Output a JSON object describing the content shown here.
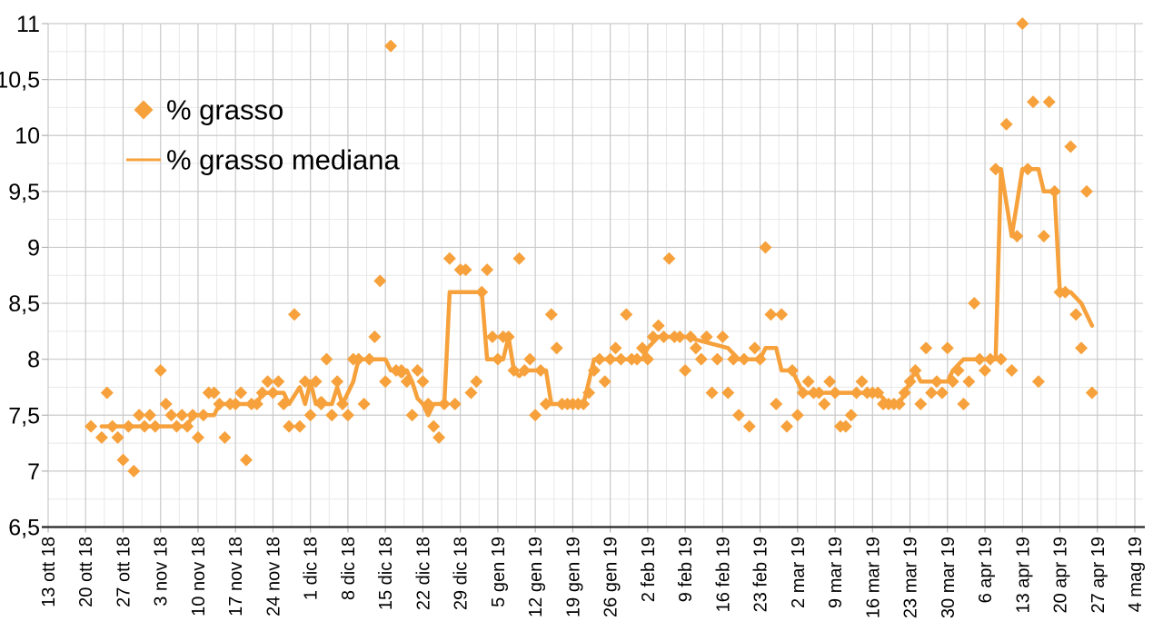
{
  "chart_data": {
    "type": "scatter",
    "title": "",
    "legend": {
      "position": "top-left",
      "entries": [
        {
          "label": "% grasso",
          "marker": "diamond"
        },
        {
          "label": "% grasso mediana",
          "marker": "line"
        }
      ]
    },
    "colors": {
      "series_orange": "#F6A13B",
      "grid_major": "#c9c9c9",
      "grid_minor": "#e8e8e8",
      "axis_line": "#262626",
      "tick": "#b3b3b3",
      "label_text": "#000000"
    },
    "x_axis": {
      "start_date": "2018-10-13",
      "end_date": "2019-05-04",
      "tick_interval_days": 7,
      "minor_interval_days": 3.5,
      "tick_labels": [
        "13 ott 18",
        "20 ott 18",
        "27 ott 18",
        "3 nov 18",
        "10 nov 18",
        "17 nov 18",
        "24 nov 18",
        "1 dic 18",
        "8 dic 18",
        "15 dic 18",
        "22 dic 18",
        "29 dic 18",
        "5 gen 19",
        "12 gen 19",
        "19 gen 19",
        "26 gen 19",
        "2 feb 19",
        "9 feb 19",
        "16 feb 19",
        "23 feb 19",
        "2 mar 19",
        "9 mar 19",
        "16 mar 19",
        "23 mar 19",
        "30 mar 19",
        "6 apr 19",
        "13 apr 19",
        "20 apr 19",
        "27 apr 19",
        "4 mag 19"
      ]
    },
    "y_axis": {
      "min": 6.5,
      "max": 11,
      "tick_step": 0.5,
      "minor_step": 0.25,
      "tick_labels": [
        "6,5",
        "7",
        "7,5",
        "8",
        "8,5",
        "9",
        "9,5",
        "10",
        "10,5",
        "11"
      ]
    },
    "series": [
      {
        "name": "% grasso",
        "type": "scatter",
        "points": [
          [
            "2018-10-21",
            7.4
          ],
          [
            "2018-10-23",
            7.3
          ],
          [
            "2018-10-24",
            7.7
          ],
          [
            "2018-10-25",
            7.4
          ],
          [
            "2018-10-26",
            7.3
          ],
          [
            "2018-10-27",
            7.1
          ],
          [
            "2018-10-28",
            7.4
          ],
          [
            "2018-10-29",
            7.0
          ],
          [
            "2018-10-30",
            7.5
          ],
          [
            "2018-10-31",
            7.4
          ],
          [
            "2018-11-01",
            7.5
          ],
          [
            "2018-11-02",
            7.4
          ],
          [
            "2018-11-03",
            7.9
          ],
          [
            "2018-11-04",
            7.6
          ],
          [
            "2018-11-05",
            7.5
          ],
          [
            "2018-11-06",
            7.4
          ],
          [
            "2018-11-07",
            7.5
          ],
          [
            "2018-11-08",
            7.4
          ],
          [
            "2018-11-09",
            7.5
          ],
          [
            "2018-11-10",
            7.3
          ],
          [
            "2018-11-11",
            7.5
          ],
          [
            "2018-11-12",
            7.7
          ],
          [
            "2018-11-13",
            7.7
          ],
          [
            "2018-11-14",
            7.6
          ],
          [
            "2018-11-15",
            7.3
          ],
          [
            "2018-11-16",
            7.6
          ],
          [
            "2018-11-17",
            7.6
          ],
          [
            "2018-11-18",
            7.7
          ],
          [
            "2018-11-19",
            7.1
          ],
          [
            "2018-11-20",
            7.6
          ],
          [
            "2018-11-21",
            7.6
          ],
          [
            "2018-11-22",
            7.7
          ],
          [
            "2018-11-23",
            7.8
          ],
          [
            "2018-11-24",
            7.7
          ],
          [
            "2018-11-25",
            7.8
          ],
          [
            "2018-11-26",
            7.6
          ],
          [
            "2018-11-27",
            7.4
          ],
          [
            "2018-11-28",
            8.4
          ],
          [
            "2018-11-29",
            7.4
          ],
          [
            "2018-11-30",
            7.8
          ],
          [
            "2018-12-01",
            7.5
          ],
          [
            "2018-12-02",
            7.8
          ],
          [
            "2018-12-03",
            7.6
          ],
          [
            "2018-12-04",
            8.0
          ],
          [
            "2018-12-05",
            7.5
          ],
          [
            "2018-12-06",
            7.8
          ],
          [
            "2018-12-07",
            7.6
          ],
          [
            "2018-12-08",
            7.5
          ],
          [
            "2018-12-09",
            8.0
          ],
          [
            "2018-12-10",
            8.0
          ],
          [
            "2018-12-11",
            7.6
          ],
          [
            "2018-12-12",
            8.0
          ],
          [
            "2018-12-13",
            8.2
          ],
          [
            "2018-12-14",
            8.7
          ],
          [
            "2018-12-15",
            7.8
          ],
          [
            "2018-12-16",
            10.8
          ],
          [
            "2018-12-17",
            7.9
          ],
          [
            "2018-12-18",
            7.9
          ],
          [
            "2018-12-19",
            7.8
          ],
          [
            "2018-12-20",
            7.5
          ],
          [
            "2018-12-21",
            7.9
          ],
          [
            "2018-12-22",
            7.8
          ],
          [
            "2018-12-23",
            7.6
          ],
          [
            "2018-12-24",
            7.4
          ],
          [
            "2018-12-25",
            7.3
          ],
          [
            "2018-12-26",
            7.6
          ],
          [
            "2018-12-27",
            8.9
          ],
          [
            "2018-12-28",
            7.6
          ],
          [
            "2018-12-29",
            8.8
          ],
          [
            "2018-12-30",
            8.8
          ],
          [
            "2018-12-31",
            7.7
          ],
          [
            "2019-01-01",
            7.8
          ],
          [
            "2019-01-02",
            8.6
          ],
          [
            "2019-01-03",
            8.8
          ],
          [
            "2019-01-04",
            8.2
          ],
          [
            "2019-01-05",
            8.0
          ],
          [
            "2019-01-06",
            8.2
          ],
          [
            "2019-01-07",
            8.2
          ],
          [
            "2019-01-08",
            7.9
          ],
          [
            "2019-01-09",
            8.9
          ],
          [
            "2019-01-10",
            7.9
          ],
          [
            "2019-01-11",
            8.0
          ],
          [
            "2019-01-12",
            7.5
          ],
          [
            "2019-01-13",
            7.9
          ],
          [
            "2019-01-14",
            7.6
          ],
          [
            "2019-01-15",
            8.4
          ],
          [
            "2019-01-16",
            8.1
          ],
          [
            "2019-01-17",
            7.6
          ],
          [
            "2019-01-18",
            7.6
          ],
          [
            "2019-01-19",
            7.6
          ],
          [
            "2019-01-20",
            7.6
          ],
          [
            "2019-01-21",
            7.6
          ],
          [
            "2019-01-22",
            7.7
          ],
          [
            "2019-01-23",
            7.9
          ],
          [
            "2019-01-24",
            8.0
          ],
          [
            "2019-01-25",
            7.8
          ],
          [
            "2019-01-26",
            8.0
          ],
          [
            "2019-01-27",
            8.1
          ],
          [
            "2019-01-28",
            8.0
          ],
          [
            "2019-01-29",
            8.4
          ],
          [
            "2019-01-30",
            8.0
          ],
          [
            "2019-01-31",
            8.0
          ],
          [
            "2019-02-01",
            8.1
          ],
          [
            "2019-02-02",
            8.0
          ],
          [
            "2019-02-03",
            8.2
          ],
          [
            "2019-02-04",
            8.3
          ],
          [
            "2019-02-05",
            8.2
          ],
          [
            "2019-02-06",
            8.9
          ],
          [
            "2019-02-07",
            8.2
          ],
          [
            "2019-02-08",
            8.2
          ],
          [
            "2019-02-09",
            7.9
          ],
          [
            "2019-02-10",
            8.2
          ],
          [
            "2019-02-11",
            8.1
          ],
          [
            "2019-02-12",
            8.0
          ],
          [
            "2019-02-13",
            8.2
          ],
          [
            "2019-02-14",
            7.7
          ],
          [
            "2019-02-15",
            8.0
          ],
          [
            "2019-02-16",
            8.2
          ],
          [
            "2019-02-17",
            7.7
          ],
          [
            "2019-02-18",
            8.0
          ],
          [
            "2019-02-19",
            7.5
          ],
          [
            "2019-02-20",
            8.0
          ],
          [
            "2019-02-21",
            7.4
          ],
          [
            "2019-02-22",
            8.1
          ],
          [
            "2019-02-23",
            8.0
          ],
          [
            "2019-02-24",
            9.0
          ],
          [
            "2019-02-25",
            8.4
          ],
          [
            "2019-02-26",
            7.6
          ],
          [
            "2019-02-27",
            8.4
          ],
          [
            "2019-02-28",
            7.4
          ],
          [
            "2019-03-01",
            7.9
          ],
          [
            "2019-03-02",
            7.5
          ],
          [
            "2019-03-03",
            7.7
          ],
          [
            "2019-03-04",
            7.8
          ],
          [
            "2019-03-05",
            7.7
          ],
          [
            "2019-03-06",
            7.7
          ],
          [
            "2019-03-07",
            7.6
          ],
          [
            "2019-03-08",
            7.8
          ],
          [
            "2019-03-09",
            7.7
          ],
          [
            "2019-03-10",
            7.4
          ],
          [
            "2019-03-11",
            7.4
          ],
          [
            "2019-03-12",
            7.5
          ],
          [
            "2019-03-13",
            7.7
          ],
          [
            "2019-03-14",
            7.8
          ],
          [
            "2019-03-15",
            7.7
          ],
          [
            "2019-03-16",
            7.7
          ],
          [
            "2019-03-17",
            7.7
          ],
          [
            "2019-03-18",
            7.6
          ],
          [
            "2019-03-19",
            7.6
          ],
          [
            "2019-03-20",
            7.6
          ],
          [
            "2019-03-21",
            7.6
          ],
          [
            "2019-03-22",
            7.7
          ],
          [
            "2019-03-23",
            7.8
          ],
          [
            "2019-03-24",
            7.9
          ],
          [
            "2019-03-25",
            7.6
          ],
          [
            "2019-03-26",
            8.1
          ],
          [
            "2019-03-27",
            7.7
          ],
          [
            "2019-03-28",
            7.8
          ],
          [
            "2019-03-29",
            7.7
          ],
          [
            "2019-03-30",
            8.1
          ],
          [
            "2019-03-31",
            7.8
          ],
          [
            "2019-04-01",
            7.9
          ],
          [
            "2019-04-02",
            7.6
          ],
          [
            "2019-04-03",
            7.8
          ],
          [
            "2019-04-04",
            8.5
          ],
          [
            "2019-04-05",
            8.0
          ],
          [
            "2019-04-06",
            7.9
          ],
          [
            "2019-04-07",
            8.0
          ],
          [
            "2019-04-08",
            9.7
          ],
          [
            "2019-04-09",
            8.0
          ],
          [
            "2019-04-10",
            10.1
          ],
          [
            "2019-04-11",
            7.9
          ],
          [
            "2019-04-12",
            9.1
          ],
          [
            "2019-04-13",
            11.0
          ],
          [
            "2019-04-14",
            9.7
          ],
          [
            "2019-04-15",
            10.3
          ],
          [
            "2019-04-16",
            7.8
          ],
          [
            "2019-04-17",
            9.1
          ],
          [
            "2019-04-18",
            10.3
          ],
          [
            "2019-04-19",
            9.5
          ],
          [
            "2019-04-20",
            8.6
          ],
          [
            "2019-04-21",
            8.6
          ],
          [
            "2019-04-22",
            9.9
          ],
          [
            "2019-04-23",
            8.4
          ],
          [
            "2019-04-24",
            8.1
          ],
          [
            "2019-04-25",
            9.5
          ],
          [
            "2019-04-26",
            7.7
          ]
        ]
      },
      {
        "name": "% grasso mediana",
        "type": "line",
        "points": [
          [
            "2018-10-23",
            7.4
          ],
          [
            "2018-11-08",
            7.4
          ],
          [
            "2018-11-09",
            7.5
          ],
          [
            "2018-11-13",
            7.5
          ],
          [
            "2018-11-14",
            7.6
          ],
          [
            "2018-11-21",
            7.6
          ],
          [
            "2018-11-22",
            7.7
          ],
          [
            "2018-11-26",
            7.7
          ],
          [
            "2018-11-27",
            7.6
          ],
          [
            "2018-11-29",
            7.75
          ],
          [
            "2018-11-30",
            7.6
          ],
          [
            "2018-12-01",
            7.8
          ],
          [
            "2018-12-02",
            7.6
          ],
          [
            "2018-12-03",
            7.65
          ],
          [
            "2018-12-04",
            7.6
          ],
          [
            "2018-12-05",
            7.6
          ],
          [
            "2018-12-06",
            7.75
          ],
          [
            "2018-12-07",
            7.6
          ],
          [
            "2018-12-08",
            7.7
          ],
          [
            "2018-12-09",
            7.8
          ],
          [
            "2018-12-10",
            8.0
          ],
          [
            "2018-12-15",
            8.0
          ],
          [
            "2018-12-16",
            7.9
          ],
          [
            "2018-12-17",
            7.9
          ],
          [
            "2018-12-18",
            7.85
          ],
          [
            "2018-12-19",
            7.9
          ],
          [
            "2018-12-20",
            7.8
          ],
          [
            "2018-12-21",
            7.65
          ],
          [
            "2018-12-22",
            7.6
          ],
          [
            "2018-12-23",
            7.5
          ],
          [
            "2018-12-24",
            7.6
          ],
          [
            "2018-12-26",
            7.6
          ],
          [
            "2018-12-27",
            8.6
          ],
          [
            "2019-01-02",
            8.6
          ],
          [
            "2019-01-03",
            8.0
          ],
          [
            "2019-01-06",
            8.0
          ],
          [
            "2019-01-07",
            8.2
          ],
          [
            "2019-01-08",
            7.9
          ],
          [
            "2019-01-09",
            7.85
          ],
          [
            "2019-01-10",
            7.9
          ],
          [
            "2019-01-14",
            7.9
          ],
          [
            "2019-01-15",
            7.6
          ],
          [
            "2019-01-21",
            7.6
          ],
          [
            "2019-01-22",
            7.8
          ],
          [
            "2019-01-23",
            8.0
          ],
          [
            "2019-02-01",
            8.0
          ],
          [
            "2019-02-02",
            8.1
          ],
          [
            "2019-02-04",
            8.2
          ],
          [
            "2019-02-09",
            8.2
          ],
          [
            "2019-02-17",
            8.1
          ],
          [
            "2019-02-19",
            8.0
          ],
          [
            "2019-02-23",
            8.0
          ],
          [
            "2019-02-24",
            8.1
          ],
          [
            "2019-02-26",
            8.1
          ],
          [
            "2019-02-27",
            7.9
          ],
          [
            "2019-03-01",
            7.9
          ],
          [
            "2019-03-03",
            7.7
          ],
          [
            "2019-03-17",
            7.7
          ],
          [
            "2019-03-19",
            7.6
          ],
          [
            "2019-03-21",
            7.6
          ],
          [
            "2019-03-22",
            7.7
          ],
          [
            "2019-03-23",
            7.8
          ],
          [
            "2019-03-24",
            7.9
          ],
          [
            "2019-03-25",
            7.8
          ],
          [
            "2019-03-30",
            7.8
          ],
          [
            "2019-03-31",
            7.9
          ],
          [
            "2019-04-02",
            8.0
          ],
          [
            "2019-04-08",
            8.0
          ],
          [
            "2019-04-09",
            9.7
          ],
          [
            "2019-04-11",
            9.1
          ],
          [
            "2019-04-13",
            9.7
          ],
          [
            "2019-04-16",
            9.7
          ],
          [
            "2019-04-17",
            9.5
          ],
          [
            "2019-04-19",
            9.5
          ],
          [
            "2019-04-20",
            8.6
          ],
          [
            "2019-04-22",
            8.6
          ],
          [
            "2019-04-24",
            8.5
          ],
          [
            "2019-04-26",
            8.3
          ]
        ]
      }
    ]
  }
}
